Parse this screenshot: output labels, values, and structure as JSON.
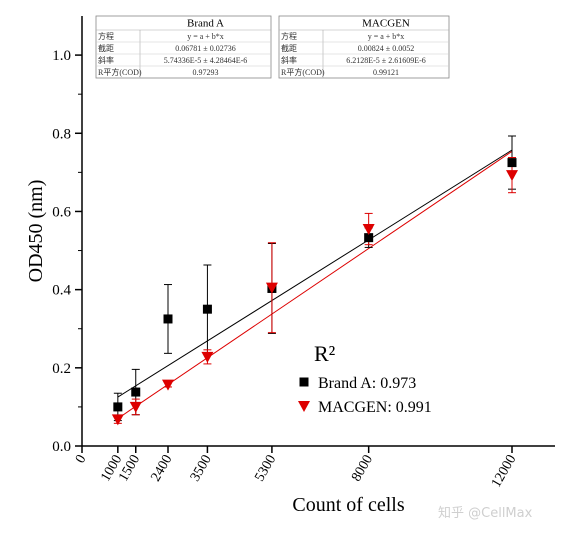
{
  "chart_data": {
    "type": "scatter",
    "xlabel": "Count of cells",
    "ylabel": "OD450 (nm)",
    "xlim": [
      0,
      13200
    ],
    "ylim": [
      0,
      1.1
    ],
    "x_ticks": [
      "0",
      "1000",
      "1500",
      "2400",
      "3500",
      "5300",
      "8000",
      "12000"
    ],
    "y_ticks": [
      "0.0",
      "0.2",
      "0.4",
      "0.6",
      "0.8",
      "1.0"
    ],
    "grid": false,
    "legend_position": "lower-right",
    "legend_title": "R²",
    "series": [
      {
        "name": "Brand A: 0.973",
        "marker": "square",
        "color": "#000000",
        "points": [
          {
            "x": 1000,
            "y": 0.1,
            "err": 0.035
          },
          {
            "x": 1500,
            "y": 0.138,
            "err": 0.058
          },
          {
            "x": 2400,
            "y": 0.325,
            "err": 0.088
          },
          {
            "x": 3500,
            "y": 0.35,
            "err": 0.113
          },
          {
            "x": 5300,
            "y": 0.403,
            "err": 0.115
          },
          {
            "x": 8000,
            "y": 0.533,
            "err": 0.025
          },
          {
            "x": 12000,
            "y": 0.725,
            "err": 0.068
          }
        ],
        "fit": {
          "intercept": 0.06781,
          "slope": 5.74336e-05
        }
      },
      {
        "name": "MACGEN: 0.991",
        "marker": "triangle-down",
        "color": "#dd0000",
        "points": [
          {
            "x": 1000,
            "y": 0.068,
            "err": 0.01
          },
          {
            "x": 1500,
            "y": 0.1,
            "err": 0.02
          },
          {
            "x": 2400,
            "y": 0.157,
            "err": 0.006
          },
          {
            "x": 3500,
            "y": 0.228,
            "err": 0.018
          },
          {
            "x": 5300,
            "y": 0.405,
            "err": 0.115
          },
          {
            "x": 8000,
            "y": 0.555,
            "err": 0.04
          },
          {
            "x": 12000,
            "y": 0.693,
            "err": 0.045
          }
        ],
        "fit": {
          "intercept": 0.00824,
          "slope": 6.2128e-05
        }
      }
    ],
    "fit_tables": [
      {
        "title": "Brand A",
        "rows": [
          {
            "label": "方程",
            "value": "y = a + b*x"
          },
          {
            "label": "截距",
            "value": "0.06781 ± 0.02736"
          },
          {
            "label": "斜率",
            "value": "5.74336E-5 ± 4.28464E-6"
          },
          {
            "label": "R平方(COD)",
            "value": "0.97293"
          }
        ]
      },
      {
        "title": "MACGEN",
        "rows": [
          {
            "label": "方程",
            "value": "y = a + b*x"
          },
          {
            "label": "截距",
            "value": "0.00824 ± 0.0052"
          },
          {
            "label": "斜率",
            "value": "6.2128E-5 ± 2.61609E-6"
          },
          {
            "label": "R平方(COD)",
            "value": "0.99121"
          }
        ]
      }
    ]
  },
  "watermark": "知乎 @CellMax"
}
